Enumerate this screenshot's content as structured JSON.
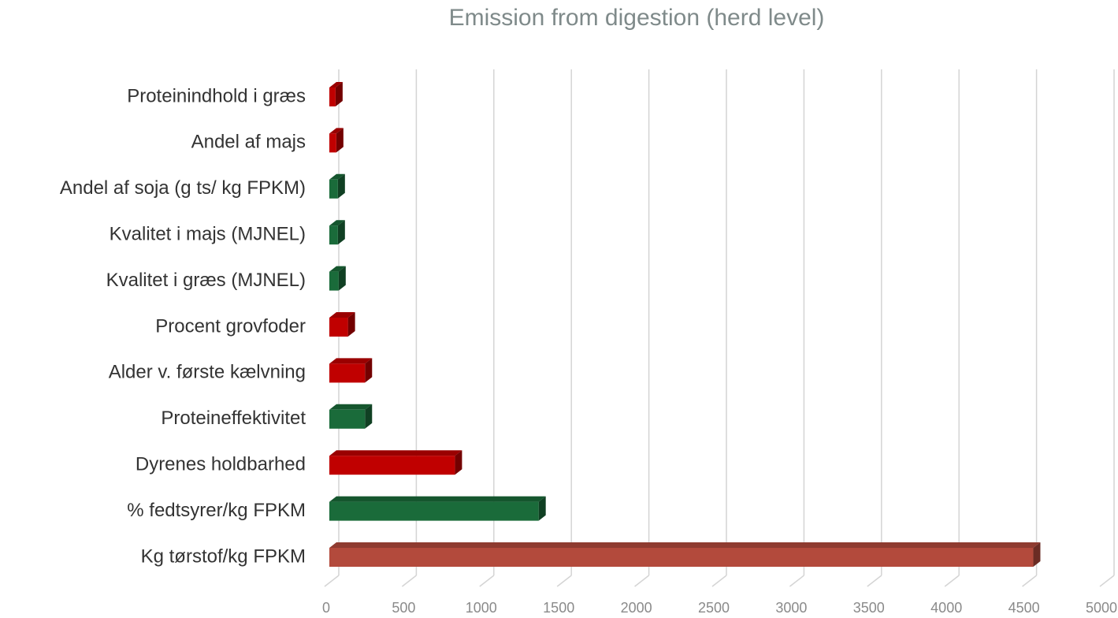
{
  "chart_data": {
    "type": "bar3d_horizontal",
    "title": "Emission from digestion (herd level)",
    "categories": [
      "Proteinindhold i græs",
      "Andel af majs",
      "Andel af soja (g ts/ kg FPKM)",
      "Kvalitet i majs (MJNEL)",
      "Kvalitet i græs (MJNEL)",
      "Procent grovfoder",
      "Alder v. første kælvning",
      "Proteineffektivitet",
      "Dyrenes holdbarhed",
      "% fedtsyrer/kg FPKM",
      "Kg tørstof/kg FPKM"
    ],
    "values": [
      40,
      45,
      55,
      55,
      60,
      120,
      230,
      230,
      810,
      1350,
      4540
    ],
    "colors": [
      "#c00000",
      "#c00000",
      "#1a6b3a",
      "#1a6b3a",
      "#1a6b3a",
      "#c00000",
      "#c00000",
      "#1a6b3a",
      "#c00000",
      "#1a6b3a",
      "#b34a3c"
    ],
    "xlim": [
      0,
      5000
    ],
    "xticks": [
      0,
      500,
      1000,
      1500,
      2000,
      2500,
      3000,
      3500,
      4000,
      4500,
      5000
    ],
    "grid": true
  }
}
